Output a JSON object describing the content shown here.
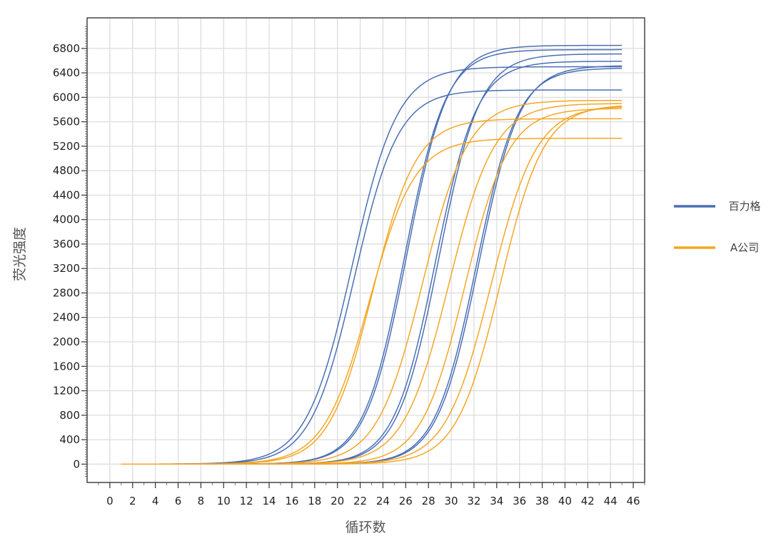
{
  "chart_data": {
    "type": "line",
    "xlabel": "循环数",
    "ylabel": "荧光强度",
    "xlim": [
      -2,
      47
    ],
    "ylim": [
      -300,
      7300
    ],
    "xticks": [
      0,
      2,
      4,
      6,
      8,
      10,
      12,
      14,
      16,
      18,
      20,
      22,
      24,
      26,
      28,
      30,
      32,
      34,
      36,
      38,
      40,
      42,
      44,
      46
    ],
    "yticks": [
      0,
      400,
      800,
      1200,
      1600,
      2000,
      2400,
      2800,
      3200,
      3600,
      4000,
      4400,
      4800,
      5200,
      5600,
      6000,
      6400,
      6800
    ],
    "grid": true,
    "legend": "right",
    "x_range": [
      1,
      45
    ],
    "series": [
      {
        "name": "百力格",
        "color": "#4a6fb5",
        "curves": [
          {
            "plateau": 6120,
            "midpoint": 21.5,
            "slope": 0.52
          },
          {
            "plateau": 6500,
            "midpoint": 21.3,
            "slope": 0.5
          },
          {
            "plateau": 6780,
            "midpoint": 25.9,
            "slope": 0.55
          },
          {
            "plateau": 6850,
            "midpoint": 26.1,
            "slope": 0.55
          },
          {
            "plateau": 6590,
            "midpoint": 28.6,
            "slope": 0.55
          },
          {
            "plateau": 6710,
            "midpoint": 28.9,
            "slope": 0.55
          },
          {
            "plateau": 6480,
            "midpoint": 32.2,
            "slope": 0.55
          },
          {
            "plateau": 6520,
            "midpoint": 32.4,
            "slope": 0.55
          }
        ]
      },
      {
        "name": "A公司",
        "color": "#f5a623",
        "curves": [
          {
            "plateau": 5330,
            "midpoint": 22.8,
            "slope": 0.5
          },
          {
            "plateau": 5650,
            "midpoint": 23.1,
            "slope": 0.52
          },
          {
            "plateau": 5950,
            "midpoint": 27.5,
            "slope": 0.5
          },
          {
            "plateau": 5900,
            "midpoint": 29.8,
            "slope": 0.5
          },
          {
            "plateau": 5820,
            "midpoint": 31.2,
            "slope": 0.52
          },
          {
            "plateau": 5860,
            "midpoint": 33.5,
            "slope": 0.5
          },
          {
            "plateau": 5880,
            "midpoint": 34.3,
            "slope": 0.52
          }
        ]
      }
    ]
  }
}
